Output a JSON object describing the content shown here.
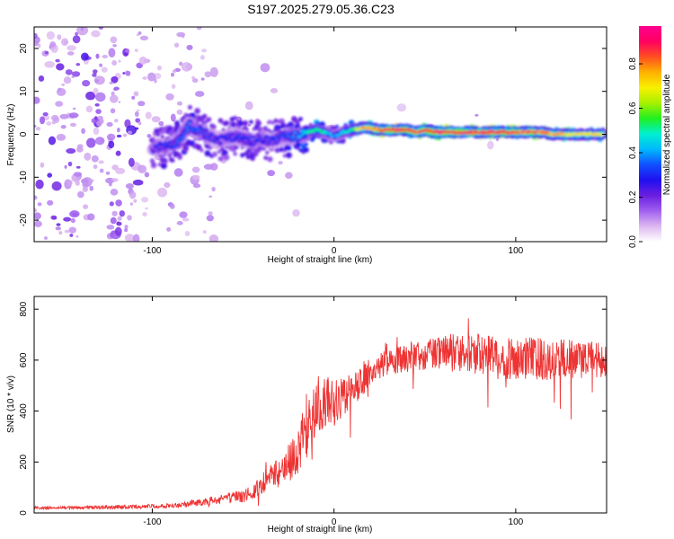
{
  "chart_data": [
    {
      "type": "heatmap",
      "title": "S197.2025.279.05.36.C23",
      "xlabel": "Height of straight line (km)",
      "ylabel": "Frequency (Hz)",
      "xlim": [
        -165,
        150
      ],
      "ylim": [
        -25,
        25
      ],
      "xticks": [
        -100,
        0,
        100
      ],
      "xtick_labels": [
        "-100",
        "0",
        "100"
      ],
      "yticks": [
        -20,
        -10,
        0,
        10,
        20
      ],
      "ytick_labels": [
        "-20",
        "-10",
        "0",
        "10",
        "20"
      ],
      "colorbar": {
        "label": "Normalized spectral amplitude",
        "range": [
          0.0,
          0.97
        ],
        "ticks": [
          0.0,
          0.2,
          0.4,
          0.6,
          0.8
        ],
        "tick_labels": [
          "0.0",
          "0.2",
          "0.4",
          "0.6",
          "0.8"
        ],
        "colormap": [
          "#ffffff",
          "#ddb8f0",
          "#a060f0",
          "#6a1ee0",
          "#2010f0",
          "#1050ff",
          "#00b8ff",
          "#00f0d0",
          "#20f020",
          "#a8f000",
          "#f8f000",
          "#ffb000",
          "#ff5020",
          "#ff0060",
          "#ff0090"
        ]
      },
      "ridge": {
        "description_free": true,
        "x": [
          -100,
          -95,
          -90,
          -85,
          -80,
          -75,
          -70,
          -65,
          -60,
          -55,
          -50,
          -45,
          -40,
          -35,
          -30,
          -25,
          -20,
          -15,
          -10,
          -5,
          0,
          5,
          10,
          15,
          20,
          25,
          30,
          35,
          40,
          45,
          50,
          55,
          60,
          65,
          70,
          75,
          80,
          85,
          90,
          95,
          100,
          105,
          110,
          115,
          120,
          125,
          130,
          135,
          140,
          145
        ],
        "y": [
          -3.5,
          -3.0,
          -2.5,
          -1.5,
          2.0,
          1.0,
          0.0,
          -1.5,
          -1.0,
          -0.5,
          -1.0,
          -1.5,
          -1.0,
          -1.5,
          -1.0,
          -0.5,
          -0.5,
          0.5,
          1.0,
          0.5,
          -0.5,
          0.5,
          1.0,
          1.5,
          1.5,
          1.0,
          1.0,
          1.0,
          1.0,
          0.5,
          1.0,
          0.5,
          0.5,
          0.5,
          0.5,
          0.5,
          0.5,
          0.5,
          0.5,
          0.5,
          0.5,
          0.5,
          0.5,
          0.5,
          0.0,
          0.0,
          0.0,
          0.0,
          0.0,
          0.0
        ],
        "amplitude": [
          0.3,
          0.3,
          0.32,
          0.35,
          0.38,
          0.35,
          0.32,
          0.3,
          0.3,
          0.3,
          0.32,
          0.3,
          0.3,
          0.3,
          0.32,
          0.35,
          0.4,
          0.5,
          0.55,
          0.5,
          0.4,
          0.45,
          0.55,
          0.75,
          0.8,
          0.85,
          0.9,
          0.92,
          0.9,
          0.88,
          0.9,
          0.92,
          0.93,
          0.9,
          0.92,
          0.9,
          0.88,
          0.9,
          0.92,
          0.9,
          0.88,
          0.85,
          0.85,
          0.8,
          0.8,
          0.75,
          0.72,
          0.7,
          0.72,
          0.7
        ]
      }
    },
    {
      "type": "line",
      "title": "",
      "xlabel": "Height of straight line (km)",
      "ylabel": "SNR (10 * v/v)",
      "xlim": [
        -165,
        150
      ],
      "ylim": [
        0,
        850
      ],
      "xticks": [
        -100,
        0,
        100
      ],
      "xtick_labels": [
        "-100",
        "0",
        "100"
      ],
      "yticks": [
        0,
        200,
        400,
        600,
        800
      ],
      "ytick_labels": [
        "0",
        "200",
        "400",
        "600",
        "800"
      ],
      "color": "#ee3333",
      "series": [
        {
          "name": "SNR",
          "x": [
            -165,
            -150,
            -130,
            -110,
            -90,
            -80,
            -70,
            -60,
            -50,
            -45,
            -40,
            -35,
            -30,
            -25,
            -20,
            -15,
            -10,
            -5,
            0,
            5,
            10,
            15,
            20,
            25,
            30,
            35,
            40,
            50,
            60,
            70,
            80,
            90,
            100,
            110,
            120,
            130,
            140,
            150
          ],
          "y": [
            20,
            20,
            22,
            25,
            30,
            35,
            45,
            55,
            65,
            80,
            110,
            140,
            160,
            200,
            230,
            320,
            420,
            450,
            430,
            450,
            480,
            520,
            560,
            580,
            590,
            600,
            610,
            620,
            630,
            630,
            620,
            610,
            600,
            610,
            600,
            610,
            600,
            600
          ],
          "noise": [
            6,
            6,
            7,
            8,
            10,
            12,
            15,
            20,
            25,
            30,
            40,
            50,
            60,
            70,
            90,
            110,
            120,
            110,
            90,
            80,
            70,
            65,
            60,
            55,
            50,
            55,
            60,
            60,
            70,
            80,
            85,
            85,
            80,
            85,
            80,
            80,
            75,
            70
          ]
        }
      ]
    }
  ]
}
